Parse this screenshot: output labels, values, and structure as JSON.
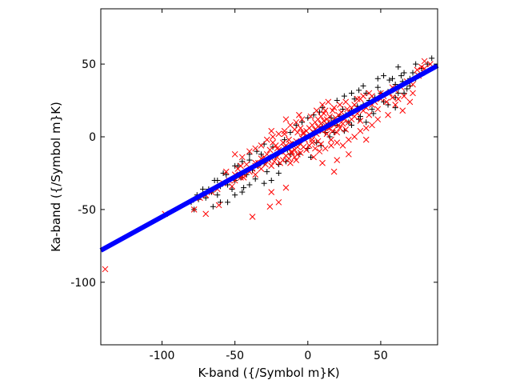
{
  "chart_data": {
    "type": "scatter",
    "xlabel": "K-band ({/Symbol m}K)",
    "ylabel": "Ka-band ({/Symbol m}K)",
    "xlim": [
      -142,
      89
    ],
    "ylim": [
      -143,
      88
    ],
    "xticks": [
      -100,
      -50,
      0,
      50
    ],
    "yticks": [
      50,
      0,
      -50,
      -100
    ],
    "grid": false,
    "fit_line": {
      "color": "#0000ff",
      "slope": 0.55,
      "intercept": 0,
      "x_range": [
        -142,
        89
      ]
    },
    "series": [
      {
        "marker": "plus",
        "color": "#000000",
        "points": [
          [
            -2,
            -1
          ],
          [
            3,
            2
          ],
          [
            5,
            4
          ],
          [
            8,
            5
          ],
          [
            -6,
            -4
          ],
          [
            10,
            7
          ],
          [
            14,
            9
          ],
          [
            18,
            11
          ],
          [
            22,
            14
          ],
          [
            26,
            15
          ],
          [
            30,
            18
          ],
          [
            34,
            21
          ],
          [
            38,
            22
          ],
          [
            42,
            25
          ],
          [
            46,
            27
          ],
          [
            50,
            30
          ],
          [
            55,
            31
          ],
          [
            60,
            36
          ],
          [
            65,
            38
          ],
          [
            70,
            40
          ],
          [
            78,
            47
          ],
          [
            85,
            54
          ],
          [
            -10,
            -5
          ],
          [
            -14,
            -9
          ],
          [
            -18,
            -10
          ],
          [
            -22,
            -13
          ],
          [
            -26,
            -15
          ],
          [
            -30,
            -18
          ],
          [
            -34,
            -20
          ],
          [
            -38,
            -23
          ],
          [
            -42,
            -26
          ],
          [
            -46,
            -28
          ],
          [
            -50,
            -30
          ],
          [
            -55,
            -33
          ],
          [
            -60,
            -34
          ],
          [
            -66,
            -38
          ],
          [
            -75,
            -43
          ],
          [
            -78,
            -50
          ],
          [
            12,
            3
          ],
          [
            16,
            13
          ],
          [
            20,
            8
          ],
          [
            24,
            19
          ],
          [
            28,
            10
          ],
          [
            32,
            26
          ],
          [
            36,
            14
          ],
          [
            40,
            30
          ],
          [
            44,
            19
          ],
          [
            48,
            34
          ],
          [
            52,
            24
          ],
          [
            56,
            39
          ],
          [
            60,
            27
          ],
          [
            64,
            42
          ],
          [
            68,
            33
          ],
          [
            72,
            44
          ],
          [
            -12,
            -12
          ],
          [
            -16,
            -2
          ],
          [
            -20,
            -19
          ],
          [
            -24,
            -7
          ],
          [
            -28,
            -24
          ],
          [
            -32,
            -12
          ],
          [
            -36,
            -29
          ],
          [
            -40,
            -16
          ],
          [
            -44,
            -35
          ],
          [
            -48,
            -20
          ],
          [
            -52,
            -36
          ],
          [
            -56,
            -26
          ],
          [
            -62,
            -40
          ],
          [
            -64,
            -30
          ],
          [
            -68,
            -36
          ],
          [
            -70,
            -42
          ],
          [
            -8,
            8
          ],
          [
            -4,
            10
          ],
          [
            0,
            13
          ],
          [
            4,
            15
          ],
          [
            8,
            17
          ],
          [
            -12,
            3
          ],
          [
            0,
            -8
          ],
          [
            6,
            -4
          ],
          [
            -6,
            -12
          ],
          [
            2,
            -14
          ],
          [
            9,
            -6
          ],
          [
            -15,
            -17
          ],
          [
            15,
            0
          ],
          [
            18,
            3
          ],
          [
            25,
            4
          ],
          [
            30,
            8
          ],
          [
            35,
            12
          ],
          [
            40,
            10
          ],
          [
            45,
            16
          ],
          [
            55,
            22
          ],
          [
            60,
            20
          ],
          [
            62,
            30
          ],
          [
            66,
            30
          ],
          [
            70,
            35
          ],
          [
            74,
            40
          ],
          [
            76,
            42
          ],
          [
            80,
            44
          ],
          [
            82,
            50
          ],
          [
            -30,
            -5
          ],
          [
            -35,
            -10
          ],
          [
            -40,
            -12
          ],
          [
            -45,
            -17
          ],
          [
            -50,
            -20
          ],
          [
            -58,
            -25
          ],
          [
            -62,
            -30
          ],
          [
            -72,
            -36
          ],
          [
            -76,
            -40
          ],
          [
            -80,
            -45
          ],
          [
            10,
            20
          ],
          [
            20,
            25
          ],
          [
            25,
            28
          ],
          [
            30,
            30
          ],
          [
            35,
            32
          ],
          [
            38,
            35
          ],
          [
            48,
            40
          ],
          [
            52,
            42
          ],
          [
            58,
            40
          ],
          [
            62,
            48
          ],
          [
            66,
            44
          ],
          [
            74,
            50
          ],
          [
            -20,
            -25
          ],
          [
            -25,
            -30
          ],
          [
            -30,
            -32
          ],
          [
            -40,
            -33
          ],
          [
            -45,
            -38
          ],
          [
            -50,
            -40
          ],
          [
            -55,
            -45
          ],
          [
            -60,
            -45
          ],
          [
            -65,
            -48
          ]
        ]
      },
      {
        "marker": "x",
        "color": "#ff0000",
        "points": [
          [
            0,
            0
          ],
          [
            2,
            1
          ],
          [
            4,
            3
          ],
          [
            6,
            2
          ],
          [
            8,
            6
          ],
          [
            10,
            4
          ],
          [
            12,
            8
          ],
          [
            14,
            6
          ],
          [
            16,
            10
          ],
          [
            18,
            8
          ],
          [
            -2,
            -2
          ],
          [
            -4,
            -1
          ],
          [
            -6,
            -4
          ],
          [
            -8,
            -3
          ],
          [
            -10,
            -6
          ],
          [
            -12,
            -5
          ],
          [
            -14,
            -8
          ],
          [
            -16,
            -7
          ],
          [
            -18,
            -10
          ],
          [
            -20,
            -9
          ],
          [
            1,
            6
          ],
          [
            3,
            8
          ],
          [
            5,
            10
          ],
          [
            7,
            12
          ],
          [
            9,
            14
          ],
          [
            -1,
            4
          ],
          [
            -3,
            2
          ],
          [
            -5,
            6
          ],
          [
            -7,
            3
          ],
          [
            -9,
            5
          ],
          [
            11,
            16
          ],
          [
            13,
            12
          ],
          [
            15,
            14
          ],
          [
            17,
            18
          ],
          [
            19,
            13
          ],
          [
            21,
            15
          ],
          [
            23,
            17
          ],
          [
            25,
            12
          ],
          [
            27,
            19
          ],
          [
            29,
            16
          ],
          [
            1,
            -6
          ],
          [
            3,
            -4
          ],
          [
            5,
            -8
          ],
          [
            7,
            -3
          ],
          [
            9,
            -5
          ],
          [
            -1,
            -9
          ],
          [
            -3,
            -7
          ],
          [
            -5,
            -11
          ],
          [
            -7,
            -12
          ],
          [
            -9,
            -14
          ],
          [
            -11,
            -10
          ],
          [
            -13,
            -15
          ],
          [
            -15,
            -13
          ],
          [
            -17,
            -16
          ],
          [
            -19,
            -18
          ],
          [
            -21,
            -14
          ],
          [
            -23,
            -17
          ],
          [
            -25,
            -20
          ],
          [
            -27,
            -16
          ],
          [
            -29,
            -19
          ],
          [
            -22,
            -6
          ],
          [
            -24,
            -4
          ],
          [
            -26,
            -9
          ],
          [
            -28,
            -12
          ],
          [
            -30,
            -14
          ],
          [
            -32,
            -15
          ],
          [
            -34,
            -18
          ],
          [
            -36,
            -20
          ],
          [
            -38,
            -22
          ],
          [
            -40,
            -24
          ],
          [
            -42,
            -19
          ],
          [
            -44,
            -26
          ],
          [
            -46,
            -28
          ],
          [
            -48,
            -22
          ],
          [
            20,
            3
          ],
          [
            22,
            6
          ],
          [
            24,
            9
          ],
          [
            26,
            5
          ],
          [
            28,
            10
          ],
          [
            30,
            12
          ],
          [
            32,
            14
          ],
          [
            34,
            16
          ],
          [
            36,
            11
          ],
          [
            38,
            18
          ],
          [
            40,
            20
          ],
          [
            42,
            15
          ],
          [
            44,
            22
          ],
          [
            46,
            24
          ],
          [
            48,
            19
          ],
          [
            50,
            26
          ],
          [
            52,
            28
          ],
          [
            54,
            24
          ],
          [
            56,
            30
          ],
          [
            58,
            27
          ],
          [
            -8,
            10
          ],
          [
            -12,
            8
          ],
          [
            -16,
            4
          ],
          [
            -20,
            2
          ],
          [
            -24,
            0
          ],
          [
            -28,
            -2
          ],
          [
            -32,
            -6
          ],
          [
            -36,
            -8
          ],
          [
            -40,
            -10
          ],
          [
            -45,
            -14
          ],
          [
            6,
            18
          ],
          [
            10,
            22
          ],
          [
            14,
            24
          ],
          [
            18,
            20
          ],
          [
            22,
            22
          ],
          [
            26,
            24
          ],
          [
            30,
            20
          ],
          [
            34,
            26
          ],
          [
            38,
            28
          ],
          [
            42,
            30
          ],
          [
            8,
            -10
          ],
          [
            12,
            -8
          ],
          [
            16,
            -6
          ],
          [
            20,
            -4
          ],
          [
            24,
            -6
          ],
          [
            28,
            -2
          ],
          [
            32,
            0
          ],
          [
            36,
            4
          ],
          [
            40,
            6
          ],
          [
            44,
            8
          ],
          [
            -50,
            -26
          ],
          [
            -54,
            -30
          ],
          [
            -58,
            -32
          ],
          [
            -62,
            -36
          ],
          [
            -66,
            -38
          ],
          [
            -70,
            -40
          ],
          [
            -74,
            -42
          ],
          [
            -46,
            -20
          ],
          [
            -52,
            -34
          ],
          [
            -56,
            -24
          ],
          [
            60,
            32
          ],
          [
            64,
            34
          ],
          [
            68,
            38
          ],
          [
            72,
            36
          ],
          [
            76,
            42
          ],
          [
            80,
            47
          ],
          [
            84,
            50
          ],
          [
            62,
            26
          ],
          [
            66,
            28
          ],
          [
            58,
            34
          ],
          [
            -61,
            -47
          ],
          [
            -70,
            -53
          ],
          [
            -98,
            -53
          ],
          [
            -78,
            -50
          ],
          [
            -139,
            -91
          ],
          [
            -38,
            -55
          ],
          [
            -15,
            -35
          ],
          [
            -25,
            -38
          ],
          [
            -20,
            -45
          ],
          [
            -26,
            -48
          ],
          [
            -50,
            -12
          ],
          [
            -36,
            -18
          ],
          [
            -25,
            4
          ],
          [
            -15,
            12
          ],
          [
            -6,
            15
          ],
          [
            10,
            -18
          ],
          [
            20,
            -16
          ],
          [
            18,
            -24
          ],
          [
            28,
            -12
          ],
          [
            40,
            -2
          ],
          [
            48,
            12
          ],
          [
            55,
            15
          ],
          [
            60,
            22
          ],
          [
            65,
            18
          ],
          [
            70,
            24
          ],
          [
            72,
            30
          ],
          [
            75,
            46
          ],
          [
            78,
            48
          ],
          [
            80,
            52
          ],
          [
            2,
            14
          ],
          [
            -4,
            12
          ],
          [
            4,
            -14
          ],
          [
            -8,
            -16
          ],
          [
            12,
            18
          ],
          [
            -12,
            -18
          ],
          [
            16,
            -2
          ],
          [
            -16,
            2
          ],
          [
            24,
            14
          ],
          [
            -24,
            -14
          ],
          [
            32,
            22
          ],
          [
            -32,
            -22
          ],
          [
            36,
            26
          ],
          [
            -36,
            -26
          ],
          [
            44,
            28
          ],
          [
            -44,
            -28
          ],
          [
            50,
            30
          ],
          [
            -50,
            -30
          ],
          [
            5,
            5
          ],
          [
            7,
            7
          ],
          [
            9,
            9
          ],
          [
            11,
            11
          ],
          [
            -5,
            -5
          ],
          [
            -7,
            -7
          ],
          [
            -9,
            -9
          ],
          [
            -11,
            -11
          ],
          [
            3,
            -2
          ],
          [
            -3,
            3
          ],
          [
            13,
            2
          ],
          [
            -13,
            -2
          ],
          [
            15,
            6
          ],
          [
            -15,
            -6
          ],
          [
            17,
            4
          ],
          [
            -17,
            -4
          ],
          [
            19,
            10
          ],
          [
            -19,
            -10
          ],
          [
            21,
            8
          ],
          [
            -21,
            -8
          ]
        ]
      }
    ]
  }
}
